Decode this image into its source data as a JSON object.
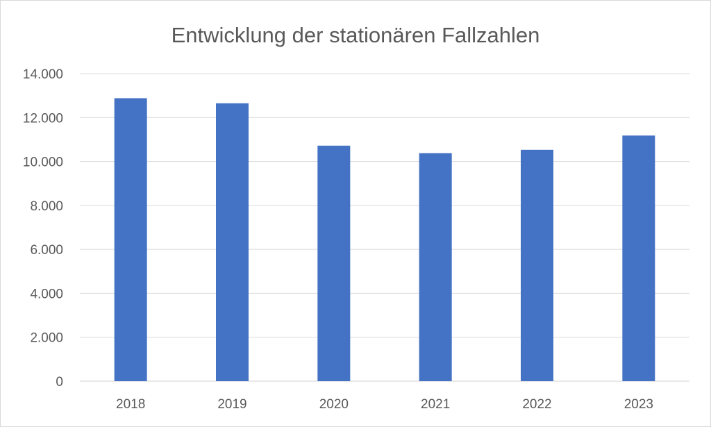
{
  "chart_data": {
    "type": "bar",
    "title": "Entwicklung der stationären Fallzahlen",
    "xlabel": "",
    "ylabel": "",
    "categories": [
      "2018",
      "2019",
      "2020",
      "2021",
      "2022",
      "2023"
    ],
    "values": [
      12880,
      12650,
      10720,
      10380,
      10530,
      11180
    ],
    "ylim": [
      0,
      14000
    ],
    "y_ticks": [
      0,
      2000,
      4000,
      6000,
      8000,
      10000,
      12000,
      14000
    ],
    "y_tick_labels": [
      "0",
      "2.000",
      "4.000",
      "6.000",
      "8.000",
      "10.000",
      "12.000",
      "14.000"
    ],
    "grid": true,
    "legend": "none",
    "bar_color": "#4472c4"
  }
}
